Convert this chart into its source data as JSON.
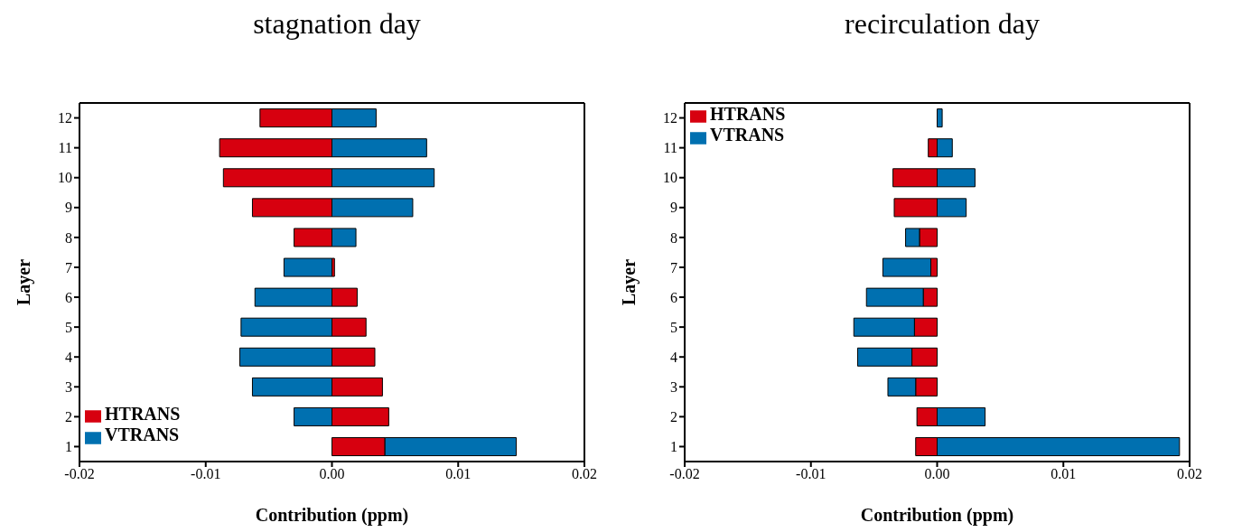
{
  "chart_data": [
    {
      "type": "bar",
      "title": "stagnation day",
      "xlabel": "Contribution (ppm)",
      "ylabel": "Layer",
      "orientation": "horizontal",
      "stacked": true,
      "legend": "bottom left",
      "categories": [
        "12",
        "11",
        "10",
        "9",
        "8",
        "7",
        "6",
        "5",
        "4",
        "3",
        "2",
        "1"
      ],
      "series": [
        {
          "name": "HTRANS",
          "color": "#d7000f",
          "values": [
            -0.0057,
            -0.0089,
            -0.0086,
            -0.0063,
            -0.003,
            0.0002,
            0.002,
            0.0027,
            0.0034,
            0.004,
            0.0045,
            0.0042
          ]
        },
        {
          "name": "VTRANS",
          "color": "#0070b0",
          "values": [
            0.0035,
            0.0075,
            0.0081,
            0.0064,
            0.0019,
            -0.0038,
            -0.0061,
            -0.0072,
            -0.0073,
            -0.0063,
            -0.003,
            0.0104
          ]
        }
      ],
      "xlim": [
        -0.02,
        0.02
      ],
      "xticks": [
        {
          "value": -0.02,
          "label": "-0.02"
        },
        {
          "value": -0.01,
          "label": "-0.01"
        },
        {
          "value": 0,
          "label": "0.00"
        },
        {
          "value": 0.01,
          "label": "0.01"
        },
        {
          "value": 0.02,
          "label": "0.02"
        }
      ]
    },
    {
      "type": "bar",
      "title": "recirculation day",
      "xlabel": "Contribution (ppm)",
      "ylabel": "Layer",
      "orientation": "horizontal",
      "stacked": true,
      "legend": "top left",
      "categories": [
        "12",
        "11",
        "10",
        "9",
        "8",
        "7",
        "6",
        "5",
        "4",
        "3",
        "2",
        "1"
      ],
      "series": [
        {
          "name": "HTRANS",
          "color": "#d7000f",
          "values": [
            null,
            -0.0007,
            -0.0035,
            -0.0034,
            -0.0014,
            -0.0005,
            -0.0011,
            -0.0018,
            -0.002,
            -0.0017,
            -0.0016,
            -0.0017
          ]
        },
        {
          "name": "VTRANS",
          "color": "#0070b0",
          "values": [
            0.0004,
            0.0012,
            0.003,
            0.0023,
            -0.0011,
            -0.0038,
            -0.0045,
            -0.0048,
            -0.0043,
            -0.0022,
            0.0038,
            0.0192
          ]
        }
      ],
      "xlim": [
        -0.02,
        0.02
      ],
      "xticks": [
        {
          "value": -0.02,
          "label": "-0.02"
        },
        {
          "value": -0.01,
          "label": "-0.01"
        },
        {
          "value": 0,
          "label": "0.00"
        },
        {
          "value": 0.01,
          "label": "0.01"
        },
        {
          "value": 0.02,
          "label": "0.02"
        }
      ]
    }
  ]
}
